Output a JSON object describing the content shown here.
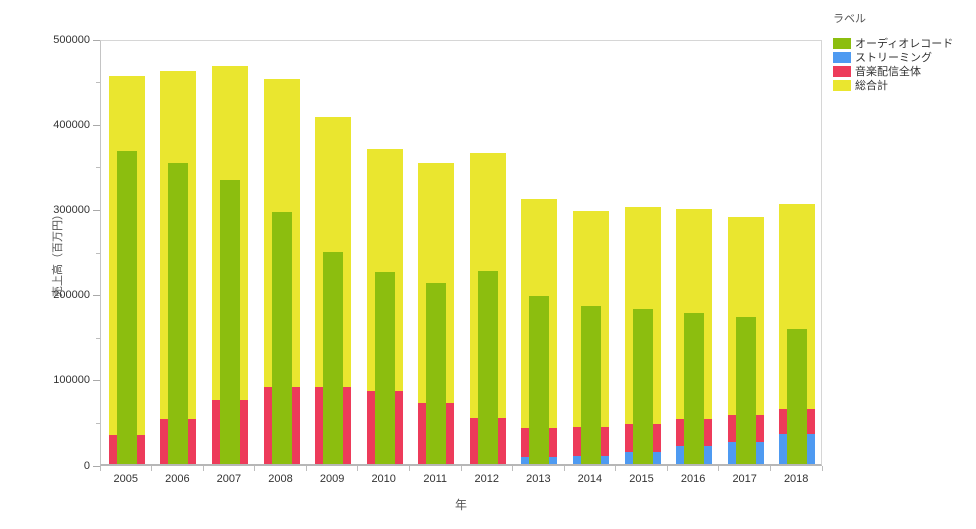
{
  "legend": {
    "title": "ラベル"
  },
  "chart_data": {
    "type": "bar",
    "variant": "overlapping-bars-from-zero (not stacked); wide bars behind, narrow bar in front",
    "xlabel": "年",
    "ylabel": "売上高（百万円）",
    "ylim": [
      0,
      500000
    ],
    "y_major_tick_step": 100000,
    "y_minor_tick_step": 50000,
    "grid": false,
    "legend_position": "right",
    "categories": [
      "2005",
      "2006",
      "2007",
      "2008",
      "2009",
      "2010",
      "2011",
      "2012",
      "2013",
      "2014",
      "2015",
      "2016",
      "2017",
      "2018"
    ],
    "series": [
      {
        "name": "総合計",
        "color": "#eae62f",
        "width": "wide",
        "values": [
          456000,
          461000,
          467000,
          452000,
          407000,
          370000,
          353000,
          365000,
          311000,
          297000,
          302000,
          299000,
          290000,
          305000
        ]
      },
      {
        "name": "音楽配信全体",
        "color": "#ed3b5a",
        "width": "wide",
        "values": [
          34000,
          53000,
          75000,
          91000,
          91000,
          86000,
          72000,
          54000,
          42000,
          44000,
          47000,
          53000,
          57000,
          65000
        ]
      },
      {
        "name": "ストリーミング",
        "color": "#4e9af1",
        "width": "wide",
        "values": [
          0,
          0,
          0,
          0,
          0,
          0,
          0,
          0,
          8000,
          10000,
          14000,
          21000,
          26000,
          35000
        ]
      },
      {
        "name": "オーディオレコード",
        "color": "#8cbe0f",
        "width": "narrow",
        "values": [
          368000,
          353000,
          333000,
          296000,
          249000,
          225000,
          212000,
          227000,
          197000,
          186000,
          182000,
          177000,
          173000,
          158000
        ]
      }
    ],
    "legend_order": [
      "オーディオレコード",
      "ストリーミング",
      "音楽配信全体",
      "総合計"
    ]
  }
}
